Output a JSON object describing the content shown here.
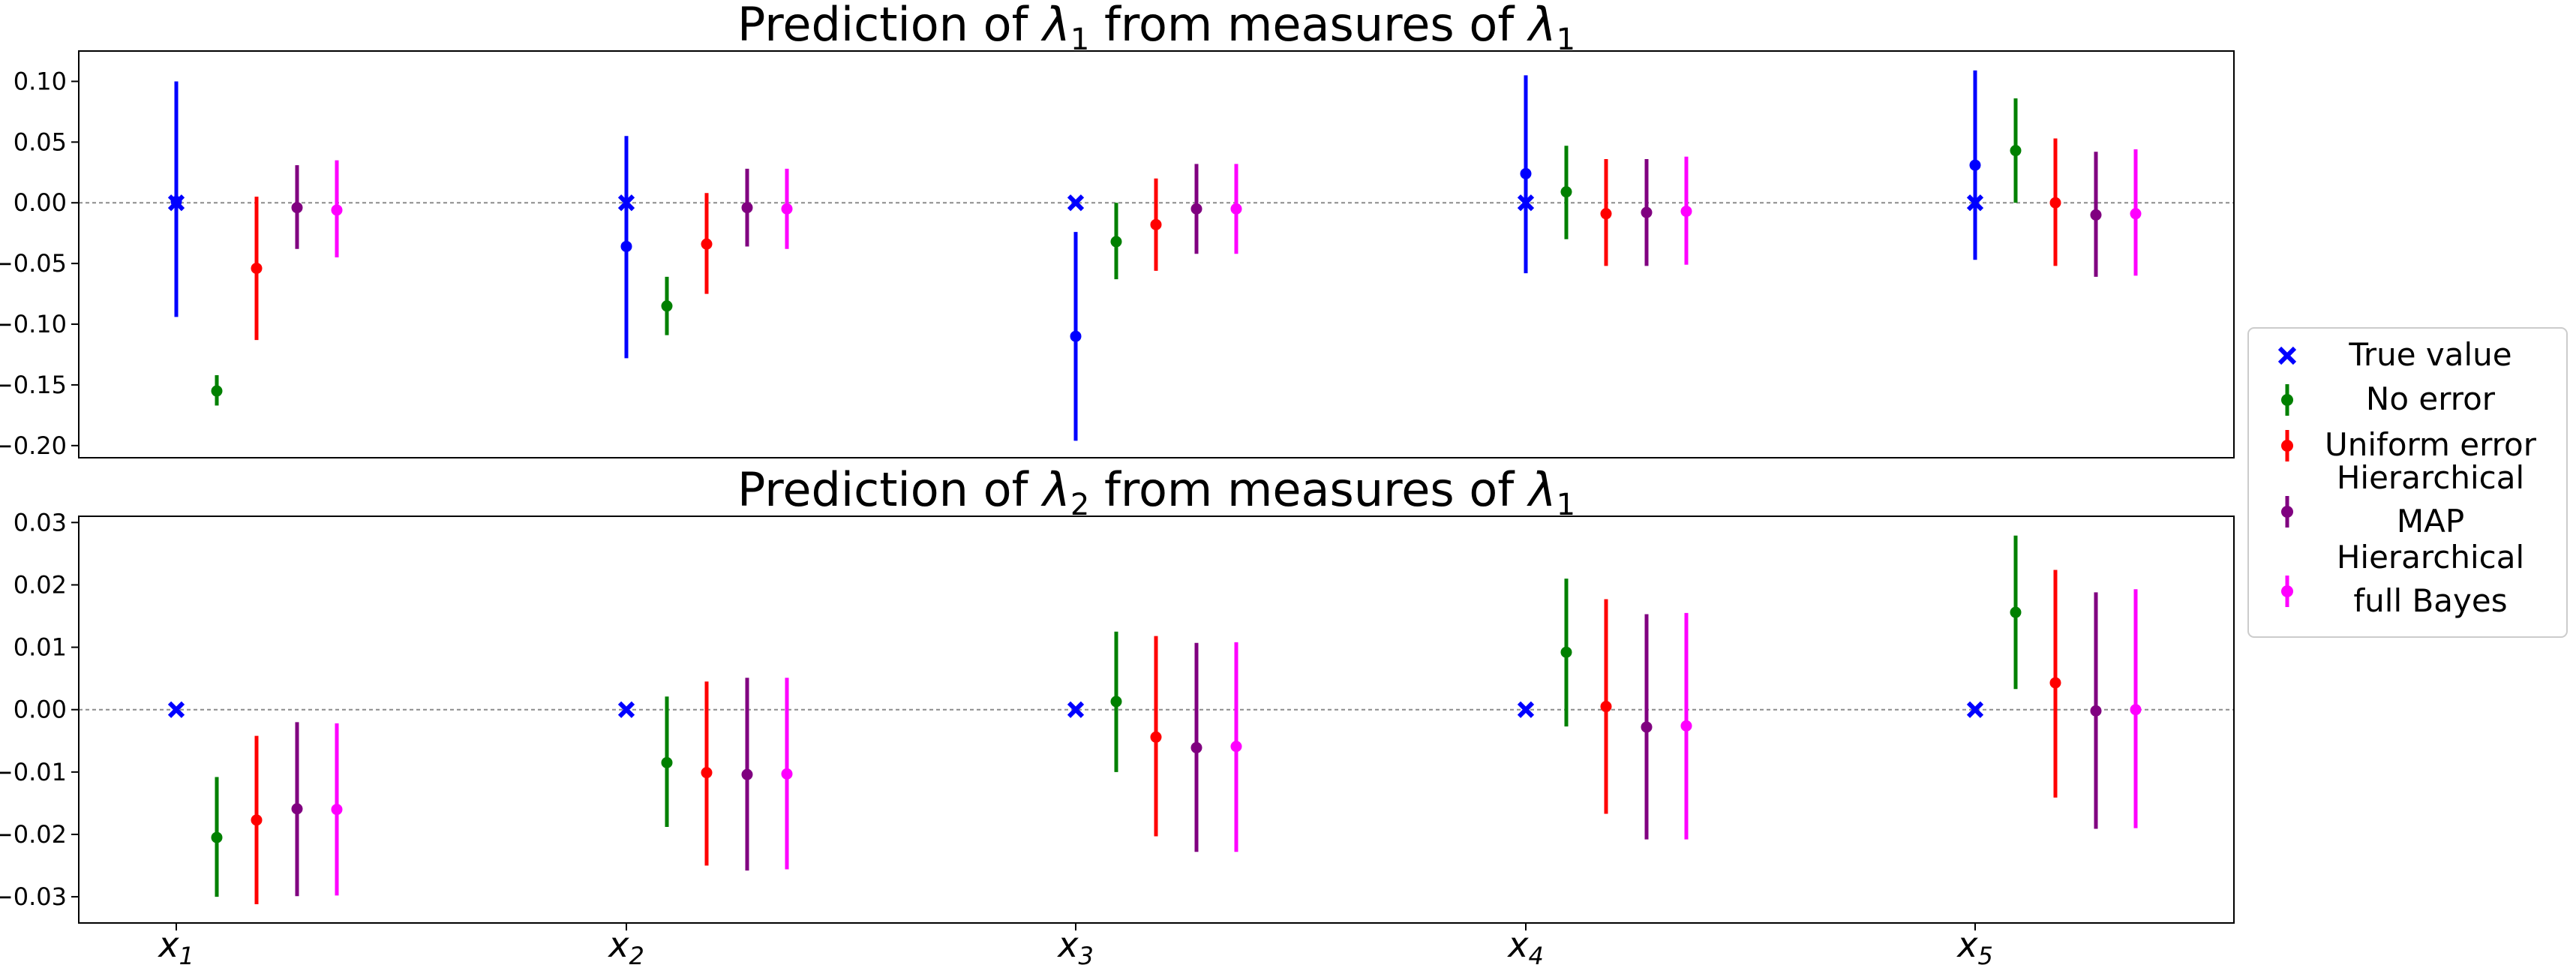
{
  "chart_data": [
    {
      "type": "errorbar",
      "title": "Prediction of λ1 from measures of λ1",
      "title_parts": [
        "Prediction of ",
        "λ",
        "1",
        " from measures of ",
        "λ",
        "1"
      ],
      "categories": [
        "x1",
        "x2",
        "x3",
        "x4",
        "x5"
      ],
      "ylim": [
        -0.21,
        0.125
      ],
      "yticks": [
        0.1,
        0.05,
        0.0,
        -0.05,
        -0.1,
        -0.15,
        -0.2
      ],
      "ytick_labels": [
        "0.10",
        "0.05",
        "0.00",
        "−0.05",
        "−0.10",
        "−0.15",
        "−0.20"
      ],
      "reference_line": 0,
      "true_value": [
        0.0,
        0.0,
        0.0,
        0.0,
        0.0
      ],
      "series": [
        {
          "name": "True value",
          "color": "#0000ff",
          "values": [
            0.001,
            -0.036,
            -0.11,
            0.024,
            0.031
          ],
          "lower": [
            -0.094,
            -0.128,
            -0.196,
            -0.058,
            -0.047
          ],
          "upper": [
            0.1,
            0.055,
            -0.024,
            0.105,
            0.109
          ]
        },
        {
          "name": "No error",
          "color": "#008000",
          "values": [
            -0.155,
            -0.085,
            -0.032,
            0.009,
            0.043
          ],
          "lower": [
            -0.167,
            -0.109,
            -0.063,
            -0.03,
            0.0
          ],
          "upper": [
            -0.142,
            -0.061,
            0.0,
            0.047,
            0.086
          ]
        },
        {
          "name": "Uniform error",
          "color": "#ff0000",
          "values": [
            -0.054,
            -0.034,
            -0.018,
            -0.009,
            0.0
          ],
          "lower": [
            -0.113,
            -0.075,
            -0.056,
            -0.052,
            -0.052
          ],
          "upper": [
            0.005,
            0.008,
            0.02,
            0.036,
            0.053
          ]
        },
        {
          "name": "Hierarchical MAP",
          "color": "#800080",
          "values": [
            -0.004,
            -0.004,
            -0.005,
            -0.008,
            -0.01
          ],
          "lower": [
            -0.038,
            -0.036,
            -0.042,
            -0.052,
            -0.061
          ],
          "upper": [
            0.031,
            0.028,
            0.032,
            0.036,
            0.042
          ]
        },
        {
          "name": "Hierarchical full Bayes",
          "color": "#ff00ff",
          "values": [
            -0.006,
            -0.005,
            -0.005,
            -0.007,
            -0.009
          ],
          "lower": [
            -0.045,
            -0.038,
            -0.042,
            -0.051,
            -0.06
          ],
          "upper": [
            0.035,
            0.028,
            0.032,
            0.038,
            0.044
          ]
        }
      ]
    },
    {
      "type": "errorbar",
      "title": "Prediction of λ2 from measures of λ1",
      "title_parts": [
        "Prediction of ",
        "λ",
        "2",
        " from measures of ",
        "λ",
        "1"
      ],
      "categories": [
        "x1",
        "x2",
        "x3",
        "x4",
        "x5"
      ],
      "ylim": [
        -0.0342,
        0.031
      ],
      "yticks": [
        0.03,
        0.02,
        0.01,
        0.0,
        -0.01,
        -0.02,
        -0.03
      ],
      "ytick_labels": [
        "0.03",
        "0.02",
        "0.01",
        "0.00",
        "−0.01",
        "−0.02",
        "−0.03"
      ],
      "reference_line": 0,
      "true_value": [
        0.0,
        0.0,
        0.0,
        0.0,
        0.0
      ],
      "series": [
        {
          "name": "No error",
          "color": "#008000",
          "values": [
            -0.0205,
            -0.0085,
            0.0013,
            0.0092,
            0.0156
          ],
          "lower": [
            -0.03,
            -0.0188,
            -0.01,
            -0.0027,
            0.0033
          ],
          "upper": [
            -0.0108,
            0.0021,
            0.0125,
            0.021,
            0.0279
          ]
        },
        {
          "name": "Uniform error",
          "color": "#ff0000",
          "values": [
            -0.0177,
            -0.0101,
            -0.0044,
            0.0005,
            0.0043
          ],
          "lower": [
            -0.0312,
            -0.025,
            -0.0203,
            -0.0167,
            -0.0141
          ],
          "upper": [
            -0.0042,
            0.0045,
            0.0118,
            0.0177,
            0.0224
          ]
        },
        {
          "name": "Hierarchical MAP",
          "color": "#800080",
          "values": [
            -0.0159,
            -0.0104,
            -0.0061,
            -0.0028,
            -0.0002
          ],
          "lower": [
            -0.0299,
            -0.0258,
            -0.0228,
            -0.0208,
            -0.0191
          ],
          "upper": [
            -0.002,
            0.0051,
            0.0107,
            0.0153,
            0.0188
          ]
        },
        {
          "name": "Hierarchical full Bayes",
          "color": "#ff00ff",
          "values": [
            -0.016,
            -0.0103,
            -0.0059,
            -0.0026,
            0.0
          ],
          "lower": [
            -0.0298,
            -0.0256,
            -0.0228,
            -0.0208,
            -0.019
          ],
          "upper": [
            -0.0022,
            0.0051,
            0.0108,
            0.0155,
            0.0193
          ]
        }
      ]
    }
  ],
  "legend": {
    "placement": "right",
    "items": [
      {
        "label": [
          "True value"
        ],
        "color": "#0000ff",
        "marker": "x"
      },
      {
        "label": [
          "No error"
        ],
        "color": "#008000",
        "marker": "errorbar"
      },
      {
        "label": [
          "Uniform error"
        ],
        "color": "#ff0000",
        "marker": "errorbar"
      },
      {
        "label": [
          "Hierarchical",
          "MAP"
        ],
        "color": "#800080",
        "marker": "errorbar"
      },
      {
        "label": [
          "Hierarchical",
          "full Bayes"
        ],
        "color": "#ff00ff",
        "marker": "errorbar"
      }
    ]
  }
}
